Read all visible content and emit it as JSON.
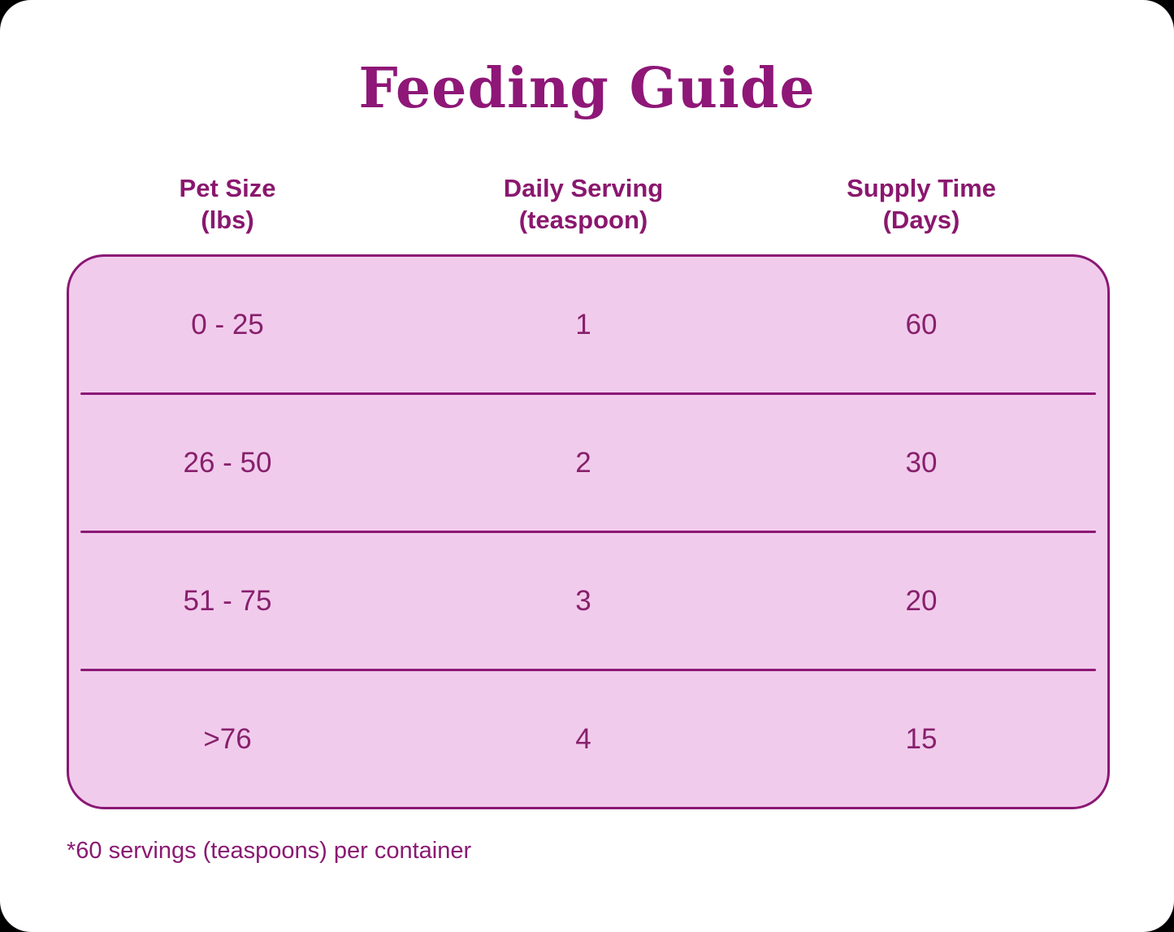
{
  "title": "Feeding Guide",
  "table": {
    "columns": [
      {
        "line1": "Pet Size",
        "line2": "(lbs)"
      },
      {
        "line1": "Daily Serving",
        "line2": "(teaspoon)"
      },
      {
        "line1": "Supply Time",
        "line2": "(Days)"
      }
    ],
    "rows": [
      {
        "pet_size": "0 - 25",
        "daily_serving": "1",
        "supply_time": "60"
      },
      {
        "pet_size": "26 - 50",
        "daily_serving": "2",
        "supply_time": "30"
      },
      {
        "pet_size": "51 - 75",
        "daily_serving": "3",
        "supply_time": "20"
      },
      {
        "pet_size": ">76",
        "daily_serving": "4",
        "supply_time": "15"
      }
    ]
  },
  "footnote": "*60 servings (teaspoons) per container",
  "colors": {
    "title_text": "#8E1777",
    "header_text": "#8A176E",
    "cell_text": "#87206C",
    "panel_background": "#F1CBEC",
    "panel_border": "#8B1874",
    "page_background": "#FFFFFF"
  },
  "chart_data": {
    "type": "table",
    "title": "Feeding Guide",
    "columns": [
      "Pet Size (lbs)",
      "Daily Serving (teaspoon)",
      "Supply Time (Days)"
    ],
    "rows": [
      [
        "0 - 25",
        "1",
        "60"
      ],
      [
        "26 - 50",
        "2",
        "30"
      ],
      [
        "51 - 75",
        "3",
        "20"
      ],
      [
        ">76",
        "4",
        "15"
      ]
    ],
    "footnote": "*60 servings (teaspoons) per container",
    "layout": {
      "grid": "horizontal-dividers-only",
      "rounded_panel": true
    }
  }
}
